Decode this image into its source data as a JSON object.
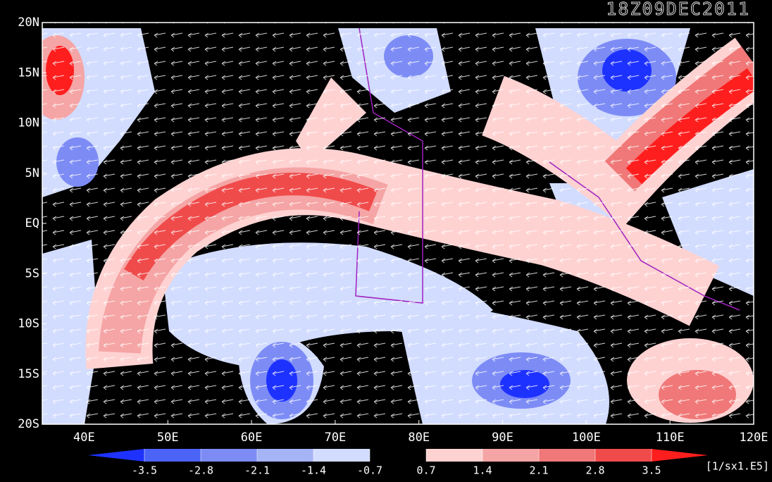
{
  "map": {
    "title": "18Z09DEC2011",
    "lon_range": [
      35,
      120
    ],
    "lat_range": [
      -20,
      20
    ],
    "lon_ticks": [
      {
        "value": 40,
        "label": "40E"
      },
      {
        "value": 50,
        "label": "50E"
      },
      {
        "value": 60,
        "label": "60E"
      },
      {
        "value": 70,
        "label": "70E"
      },
      {
        "value": 80,
        "label": "80E"
      },
      {
        "value": 90,
        "label": "90E"
      },
      {
        "value": 100,
        "label": "100E"
      },
      {
        "value": 110,
        "label": "110E"
      },
      {
        "value": 120,
        "label": "120E"
      }
    ],
    "lat_ticks": [
      {
        "value": 20,
        "label": "20N"
      },
      {
        "value": 15,
        "label": "15N"
      },
      {
        "value": 10,
        "label": "10N"
      },
      {
        "value": 5,
        "label": "5N"
      },
      {
        "value": 0,
        "label": "EQ"
      },
      {
        "value": -5,
        "label": "5S"
      },
      {
        "value": -10,
        "label": "10S"
      },
      {
        "value": -15,
        "label": "15S"
      },
      {
        "value": -20,
        "label": "20S"
      }
    ]
  },
  "colorbar": {
    "levels": [
      -3.5,
      -2.8,
      -2.1,
      -1.4,
      -0.7,
      0.7,
      1.4,
      2.1,
      2.8,
      3.5
    ],
    "colors": [
      "#1e32ff",
      "#4b64f5",
      "#7d8cf5",
      "#a5b4f5",
      "#d2dcff",
      "#000000",
      "#ffd2d2",
      "#f5a5a5",
      "#f07878",
      "#f04b4b",
      "#ff1e1e"
    ],
    "unit": "[1/sx1.E5]"
  }
}
